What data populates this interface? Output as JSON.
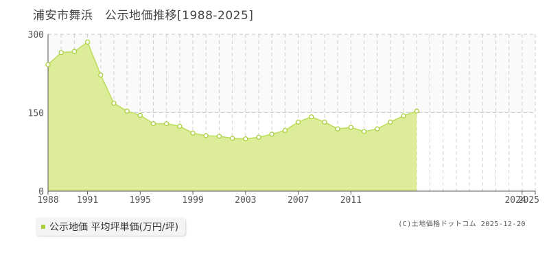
{
  "title": "浦安市舞浜　公示地価推移[1988-2025]",
  "legend": {
    "label": "公示地価 平均坪単価(万円/坪)"
  },
  "credit": "(C)土地価格ドットコム 2025-12-20",
  "colors": {
    "fill": "#dcec98",
    "line": "#bcdc5a",
    "marker": "#a8d03c",
    "highlight_band": "#fafafa"
  },
  "chart_data": {
    "type": "area",
    "title": "浦安市舞浜　公示地価推移[1988-2025]",
    "xlabel": "",
    "ylabel": "",
    "ylim": [
      0,
      300
    ],
    "xlim": [
      1988,
      2025
    ],
    "yticks": [
      0,
      150,
      300
    ],
    "xticks": [
      1988,
      1991,
      1995,
      1999,
      2003,
      2007,
      2011,
      2024,
      2025
    ],
    "grid": true,
    "legend_position": "bottom-left",
    "series": [
      {
        "name": "公示地価 平均坪単価(万円/坪)",
        "x": [
          1988,
          1989,
          1990,
          1991,
          1992,
          1993,
          1994,
          1995,
          1996,
          1997,
          1998,
          1999,
          2000,
          2001,
          2002,
          2003,
          2004,
          2005,
          2006,
          2007,
          2008,
          2009,
          2010,
          2011,
          2012,
          2013,
          2014,
          2015,
          2016,
          2017,
          2018,
          2019,
          2020,
          2021,
          2022,
          2023,
          2024,
          2025
        ],
        "values": [
          242,
          265,
          267,
          285,
          222,
          168,
          153,
          145,
          129,
          129,
          124,
          111,
          106,
          105,
          101,
          100,
          103,
          109,
          116,
          132,
          142,
          132,
          119,
          122,
          114,
          119,
          132,
          144,
          153,
          0,
          0,
          0,
          0,
          0,
          0,
          0,
          0,
          0
        ]
      }
    ]
  }
}
